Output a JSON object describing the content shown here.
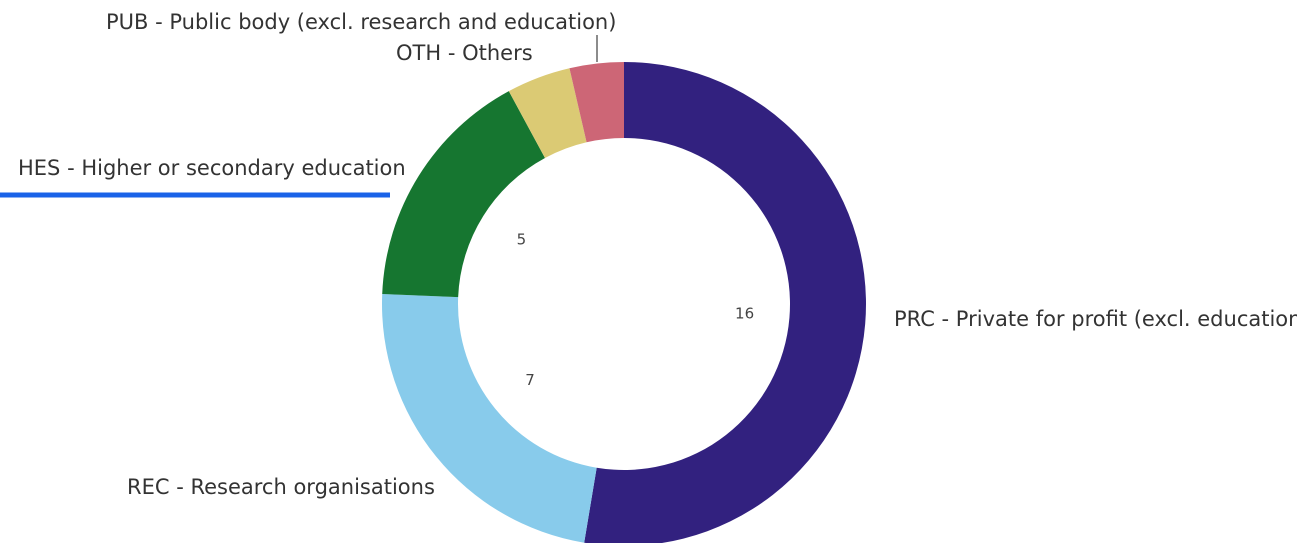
{
  "chart_data": {
    "type": "pie",
    "donut": true,
    "slices": [
      {
        "label": "PRC - Private for profit (excl. education)",
        "value": 16,
        "value_label": "16",
        "color": "#32217f"
      },
      {
        "label": "REC - Research organisations",
        "value": 7,
        "value_label": "7",
        "color": "#88cbeb"
      },
      {
        "label": "HES - Higher or secondary education",
        "value": 5,
        "value_label": "5",
        "color": "#167630",
        "highlighted": true
      },
      {
        "label": "PUB - Public body (excl. research and education)",
        "value": 1.3,
        "value_label": "",
        "color": "#dbca74"
      },
      {
        "label": "OTH - Others",
        "value": 1.1,
        "value_label": "",
        "color": "#cd6676"
      }
    ],
    "highlight_color": "#1a63e8"
  }
}
